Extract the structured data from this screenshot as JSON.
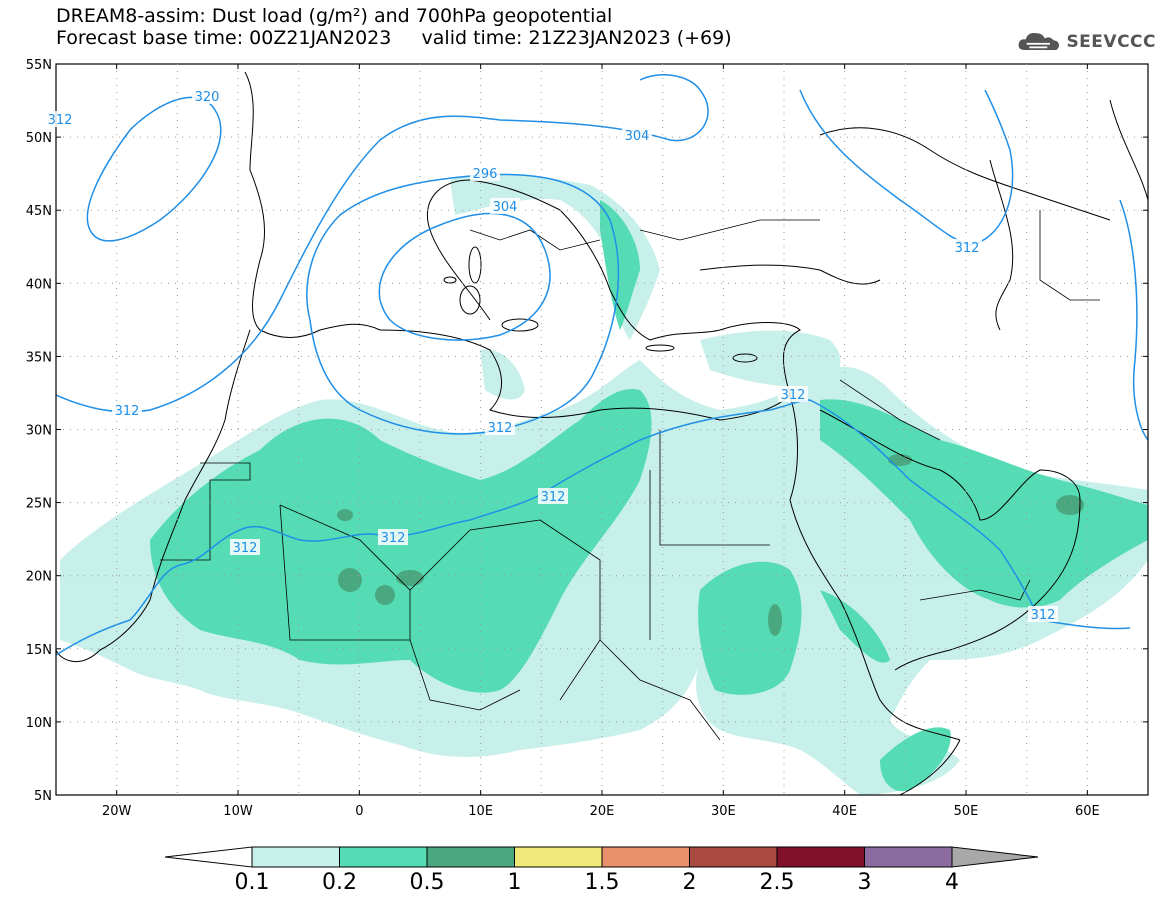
{
  "header": {
    "title_line1": "DREAM8-assim: Dust load (g/m²) and 700hPa geopotential",
    "title_line2": "Forecast base time: 00Z21JAN2023     valid time: 21Z23JAN2023 (+69)"
  },
  "logo": {
    "text": "SEEVCCC",
    "icon": "cloud-icon"
  },
  "map": {
    "lat_labels": [
      "55N",
      "50N",
      "45N",
      "40N",
      "35N",
      "30N",
      "25N",
      "20N",
      "15N",
      "10N",
      "5N"
    ],
    "lon_labels": [
      "20W",
      "10W",
      "0",
      "10E",
      "20E",
      "30E",
      "40E",
      "50E",
      "60E"
    ],
    "lat_range": [
      5,
      55
    ],
    "lon_range": [
      -25,
      65
    ],
    "grid": true,
    "contour_color": "#1f8fe8",
    "contour_labels": [
      "320",
      "312",
      "304",
      "296",
      "304",
      "312",
      "312",
      "312",
      "312",
      "312",
      "312",
      "312",
      "312"
    ]
  },
  "colorbar": {
    "labels": [
      "0.1",
      "0.2",
      "0.5",
      "1",
      "1.5",
      "2",
      "2.5",
      "3",
      "4"
    ],
    "colors": [
      "#c8f0ea",
      "#55dcb4",
      "#4aa880",
      "#f0e878",
      "#e8906a",
      "#a84a40",
      "#80102c",
      "#8c6ca0"
    ],
    "extend_low_color": "#ffffff",
    "extend_high_color": "#a8a8a8"
  },
  "legend_colors": {
    "c01": "#c8f0ea",
    "c02": "#55dcb4",
    "c05": "#4aa880"
  }
}
